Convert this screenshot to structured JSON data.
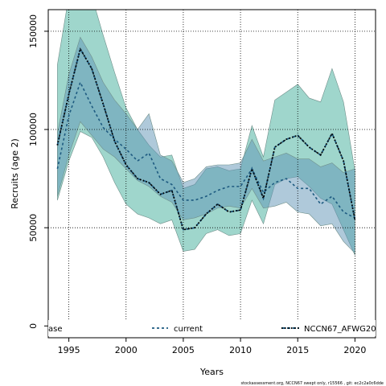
{
  "chart_data": {
    "type": "line",
    "title": "",
    "xlabel": "Years",
    "ylabel": "Recruits (age 2)",
    "xlim": [
      1993.2,
      2021.8
    ],
    "ylim": [
      -6000,
      161000
    ],
    "xticks": [
      1995,
      2000,
      2005,
      2010,
      2015,
      2020
    ],
    "yticks": [
      0,
      50000,
      100000,
      150000
    ],
    "ytick_labels": [
      "0",
      "50000",
      "100000",
      "150000"
    ],
    "grid": "dotted",
    "legend_position": "bottom",
    "x": [
      1994,
      1995,
      1996,
      1997,
      1998,
      1999,
      2000,
      2001,
      2002,
      2003,
      2004,
      2005,
      2006,
      2007,
      2008,
      2009,
      2010,
      2011,
      2012,
      2013,
      2014,
      2015,
      2016,
      2017,
      2018,
      2019,
      2020
    ],
    "series": [
      {
        "name": "ase",
        "color": "#000000",
        "style": "dotted",
        "values": [
          92000,
          118000,
          141000,
          131000,
          113000,
          94000,
          82000,
          75000,
          73000,
          67000,
          69000,
          49000,
          50000,
          57000,
          62000,
          58000,
          59000,
          80000,
          65000,
          91000,
          95000,
          97000,
          91000,
          87000,
          98000,
          84000,
          54000
        ],
        "band": {
          "color": "#3fae9a",
          "lower": [
            64000,
            84000,
            99000,
            96000,
            86000,
            73000,
            62000,
            57000,
            55000,
            52000,
            54000,
            38000,
            39000,
            47000,
            49000,
            46000,
            47000,
            64000,
            52000,
            72000,
            75000,
            76000,
            71000,
            65000,
            62000,
            49000,
            36000
          ],
          "upper": [
            133000,
            168000,
            171000,
            168000,
            148000,
            129000,
            111000,
            100000,
            92000,
            86000,
            87000,
            70000,
            72000,
            80000,
            81000,
            79000,
            80000,
            102000,
            86000,
            115000,
            119000,
            123000,
            116000,
            114000,
            131000,
            114000,
            79000
          ]
        }
      },
      {
        "name": "current",
        "color": "#1d5a80",
        "style": "dashed",
        "values": [
          80000,
          107000,
          124000,
          112000,
          101000,
          95000,
          90000,
          84000,
          88000,
          75000,
          72000,
          64000,
          64000,
          66000,
          69000,
          71000,
          71000,
          80000,
          68000,
          73000,
          75000,
          70000,
          70000,
          62000,
          66000,
          58000,
          55000
        ],
        "band": {
          "color": "#5f93b5",
          "lower": [
            66000,
            87000,
            104000,
            97000,
            90000,
            86000,
            80000,
            74000,
            71000,
            66000,
            63000,
            54000,
            55000,
            57000,
            60000,
            61000,
            60000,
            70000,
            60000,
            61000,
            63000,
            58000,
            57000,
            51000,
            52000,
            43000,
            37000
          ],
          "upper": [
            98000,
            128000,
            147000,
            137000,
            124000,
            115000,
            108000,
            100000,
            108000,
            87000,
            84000,
            73000,
            75000,
            81000,
            82000,
            82000,
            83000,
            95000,
            84000,
            86000,
            88000,
            85000,
            85000,
            81000,
            83000,
            78000,
            80000
          ]
        }
      },
      {
        "name": "NCCN67_AFWG20",
        "color": "#000000",
        "style": "dotted",
        "values": [
          92000,
          118000,
          141000,
          131000,
          113000,
          94000,
          82000,
          75000,
          73000,
          67000,
          69000,
          49000,
          50000,
          57000,
          62000,
          58000,
          59000,
          80000,
          65000,
          91000,
          95000,
          97000,
          91000,
          87000,
          98000,
          84000,
          54000
        ]
      }
    ],
    "legend": [
      {
        "label": "ase",
        "marker": "none"
      },
      {
        "label": "current",
        "marker": "dashed",
        "color": "#1d5a80"
      },
      {
        "label": "NCCN67_AFWG20",
        "marker": "dotted-dashed",
        "color": "#000000"
      }
    ],
    "footnote": "stockassessment.org, NCCN67 swept only, r15566 , git: ec2c2a0c6dde"
  }
}
